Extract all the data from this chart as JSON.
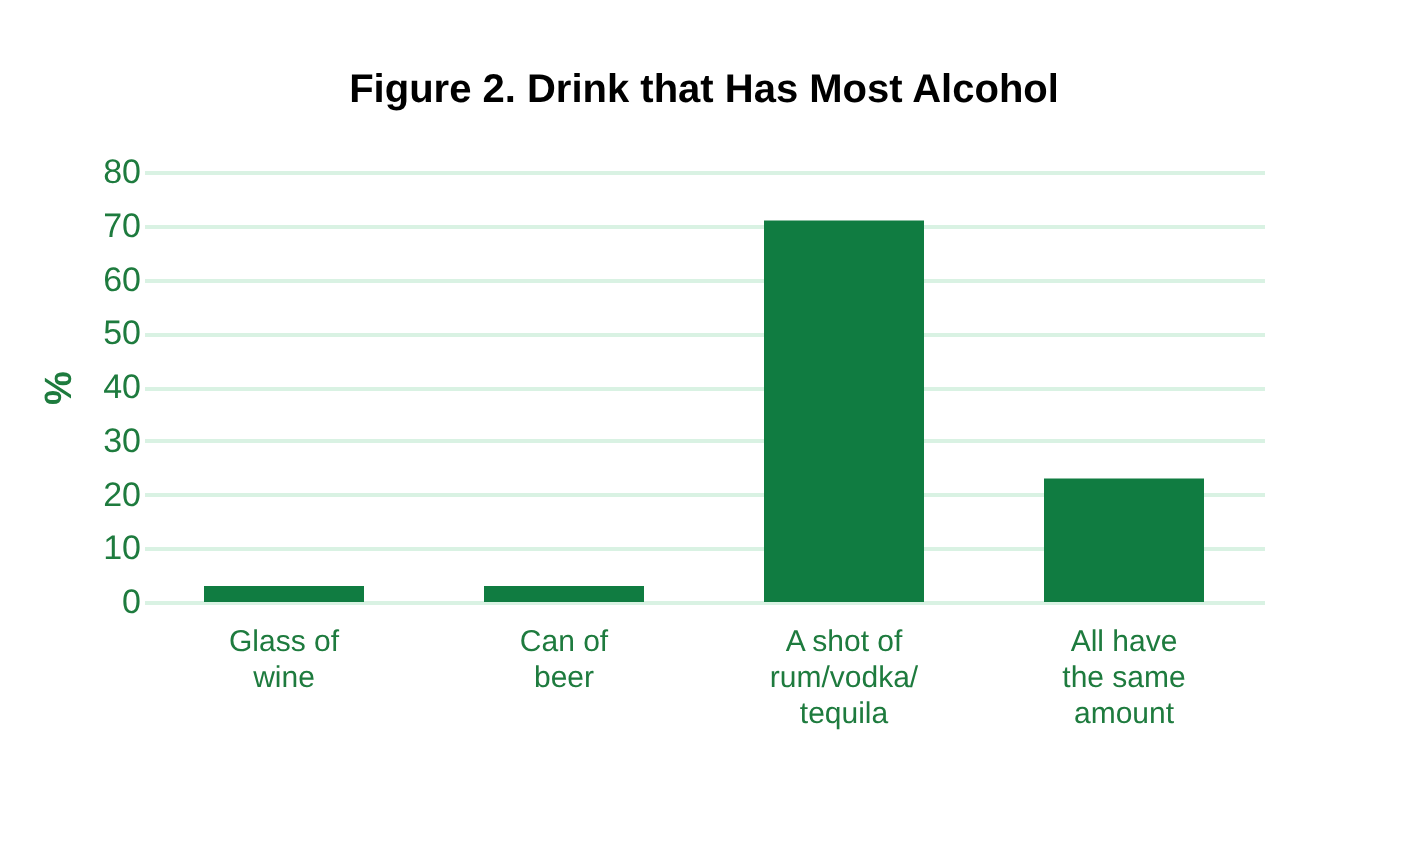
{
  "chart_data": {
    "type": "bar",
    "title": "Figure 2. Drink that Has Most Alcohol",
    "ylabel": "%",
    "categories": [
      "Glass of wine",
      "Can of beer",
      "A shot of rum/vodka/tequila",
      "All have the same amount"
    ],
    "values": [
      3,
      3,
      71,
      23
    ],
    "color": "#107c41",
    "ylim": [
      0,
      80
    ],
    "yticks": [
      0,
      10,
      20,
      30,
      40,
      50,
      60,
      70,
      80
    ],
    "grid": "y"
  }
}
